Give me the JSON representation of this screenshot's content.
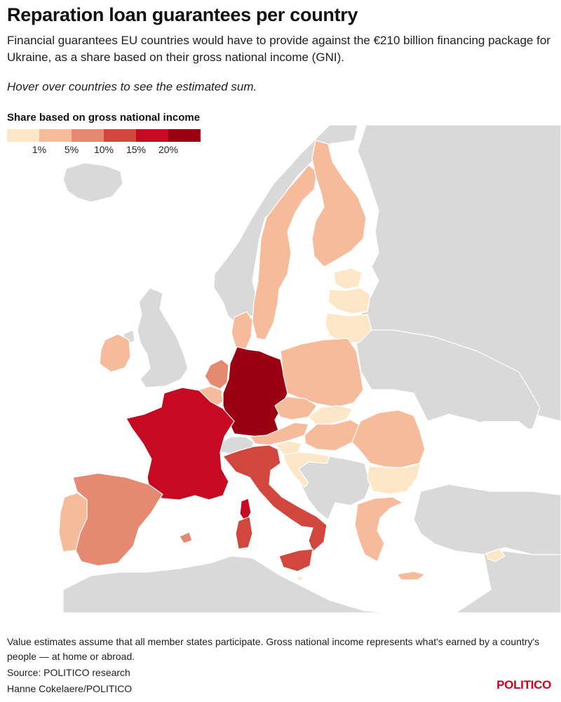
{
  "title": "Reparation loan guarantees per country",
  "subtitle": "Financial guarantees EU countries would have to provide against the €210 billion financing package for Ukraine, as a share based on their gross national income (GNI).",
  "hint": "Hover over countries to see the estimated sum.",
  "legend": {
    "title": "Share based on gross national income",
    "labels": [
      "1%",
      "5%",
      "10%",
      "15%",
      "20%"
    ],
    "colors": [
      "#fde7c6",
      "#f6bb9a",
      "#e58a70",
      "#d1463d",
      "#c50a21",
      "#9a0012"
    ]
  },
  "colors": {
    "non_eu": "#d9d9d9",
    "sea": "#ffffff",
    "brand": "#d0021b"
  },
  "footer": {
    "note": "Value estimates assume that all member states participate. Gross national income represents what's earned by a country's people — at home or abroad.",
    "source": "Source: POLITICO research",
    "credit": "Hanne Cokelaere/POLITICO"
  },
  "brand": "POLITICO"
}
